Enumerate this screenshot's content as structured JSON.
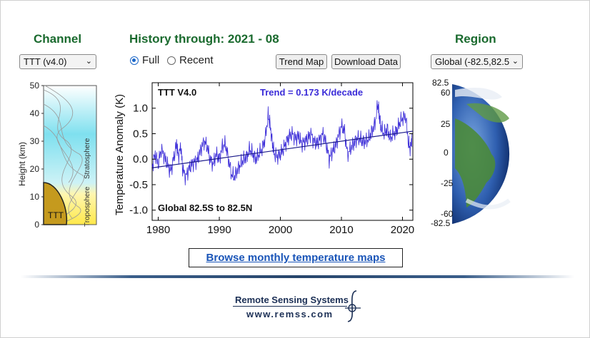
{
  "channel": {
    "heading": "Channel",
    "select_value": "TTT (v4.0)",
    "axis_label": "Height (km)",
    "ticks": [
      "50",
      "40",
      "30",
      "20",
      "10",
      "0"
    ],
    "stratosphere_label": "Stratosphere",
    "troposphere_label": "Troposphere",
    "weighting_label": "TTT"
  },
  "history": {
    "heading": "History through: 2021 - 08",
    "radio_full": "Full",
    "radio_recent": "Recent",
    "selected": "Full",
    "trend_map_label": "Trend Map",
    "download_label": "Download Data"
  },
  "region": {
    "heading": "Region",
    "select_value": "Global (-82.5,82.5",
    "lat_labels": [
      "82.5",
      "60",
      "25",
      "0",
      "-25",
      "-60",
      "-82.5"
    ]
  },
  "chart_data": {
    "type": "line",
    "title": "TTT V4.0",
    "trend_text": "Trend =  0.173 K/decade",
    "region_text": "Global  82.5S to  82.5N",
    "ylabel": "Temperature Anomaly (K)",
    "xlabel": "",
    "xlim": [
      1979,
      2021.7
    ],
    "ylim": [
      -1.2,
      1.5
    ],
    "xticks": [
      1980,
      1990,
      2000,
      2010,
      2020
    ],
    "yticks": [
      -1.0,
      -0.5,
      0.0,
      0.5,
      1.0
    ],
    "ytick_labels": [
      "-1.0",
      "-0.5",
      "0.0",
      "0.5",
      "1.0"
    ],
    "series": [
      {
        "x": [
          1979.0,
          1979.5,
          1980.0,
          1980.5,
          1981.0,
          1981.5,
          1982.0,
          1982.5,
          1983.0,
          1983.3,
          1983.7,
          1984.0,
          1984.5,
          1985.0,
          1985.5,
          1986.0,
          1986.5,
          1987.0,
          1987.5,
          1988.0,
          1988.5,
          1989.0,
          1989.5,
          1990.0,
          1990.5,
          1991.0,
          1991.5,
          1992.0,
          1992.5,
          1993.0,
          1993.5,
          1994.0,
          1994.5,
          1995.0,
          1995.5,
          1996.0,
          1996.5,
          1997.0,
          1997.5,
          1998.0,
          1998.3,
          1998.7,
          1999.0,
          1999.5,
          2000.0,
          2000.5,
          2001.0,
          2001.5,
          2002.0,
          2002.5,
          2003.0,
          2003.5,
          2004.0,
          2004.5,
          2005.0,
          2005.5,
          2006.0,
          2006.5,
          2007.0,
          2007.5,
          2008.0,
          2008.5,
          2009.0,
          2009.5,
          2010.0,
          2010.5,
          2011.0,
          2011.5,
          2012.0,
          2012.5,
          2013.0,
          2013.5,
          2014.0,
          2014.5,
          2015.0,
          2015.5,
          2016.0,
          2016.2,
          2016.5,
          2017.0,
          2017.5,
          2018.0,
          2018.5,
          2019.0,
          2019.5,
          2020.0,
          2020.5,
          2021.0,
          2021.3,
          2021.6
        ],
        "y": [
          -0.15,
          0.1,
          -0.1,
          0.2,
          0.05,
          -0.1,
          -0.25,
          0.0,
          0.3,
          0.05,
          0.25,
          -0.2,
          -0.35,
          -0.2,
          -0.1,
          -0.05,
          0.0,
          0.2,
          0.35,
          0.25,
          0.0,
          -0.1,
          0.1,
          0.0,
          0.25,
          0.3,
          0.0,
          -0.3,
          -0.35,
          -0.2,
          -0.1,
          0.0,
          0.05,
          0.2,
          0.1,
          0.0,
          0.1,
          0.2,
          0.4,
          0.85,
          0.7,
          0.3,
          0.1,
          0.05,
          0.1,
          0.2,
          0.35,
          0.45,
          0.5,
          0.4,
          0.45,
          0.3,
          0.35,
          0.4,
          0.5,
          0.35,
          0.3,
          0.4,
          0.5,
          0.3,
          0.0,
          0.15,
          0.25,
          0.45,
          0.65,
          0.55,
          0.1,
          0.2,
          0.3,
          0.4,
          0.4,
          0.35,
          0.35,
          0.4,
          0.55,
          0.7,
          1.1,
          0.85,
          0.6,
          0.5,
          0.6,
          0.4,
          0.5,
          0.55,
          0.7,
          0.8,
          0.85,
          0.3,
          0.2,
          0.5
        ]
      }
    ],
    "trend_line": {
      "x": [
        1979,
        2021.7
      ],
      "y": [
        -0.17,
        0.55
      ]
    }
  },
  "browse_link": "Browse monthly temperature maps",
  "footer": {
    "org": "Remote Sensing Systems",
    "url": "www.remss.com"
  },
  "colors": {
    "heading": "#1a6a2e",
    "series": "#3a2bd8",
    "link": "#1a55b8"
  }
}
